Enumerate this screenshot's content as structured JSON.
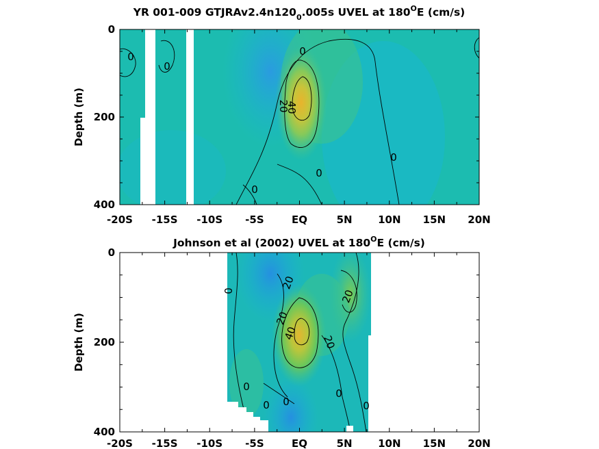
{
  "chart_data": [
    {
      "type": "heatmap",
      "title": "YR 001-009 GTJRAv2.4n120",
      "title_subscript": "0",
      "title_suffix": ".005s UVEL at 180",
      "title_superscript": "O",
      "title_end": "E (cm/s)",
      "xlabel": "",
      "ylabel": "Depth (m)",
      "x_ticks": [
        "-20S",
        "-15S",
        "-10S",
        "-5S",
        "EQ",
        "5N",
        "10N",
        "15N",
        "20N"
      ],
      "y_ticks": [
        "0",
        "200",
        "400"
      ],
      "xlim": [
        -20,
        20
      ],
      "ylim": [
        400,
        0
      ],
      "contour_levels": [
        0,
        20,
        40
      ],
      "undercurrent_core": {
        "lat": 0.5,
        "depth": 150,
        "peak_u": 50
      },
      "contour_labels": [
        "0",
        "0",
        "0",
        "20",
        "40",
        "0",
        "0",
        "0"
      ]
    },
    {
      "type": "heatmap",
      "title": "Johnson et al (2002) UVEL at 180",
      "title_superscript": "O",
      "title_end": "E (cm/s)",
      "xlabel": "",
      "ylabel": "Depth (m)",
      "x_ticks": [
        "-20S",
        "-15S",
        "-10S",
        "-5S",
        "EQ",
        "5N",
        "10N",
        "15N",
        "20N"
      ],
      "y_ticks": [
        "0",
        "200",
        "400"
      ],
      "xlim": [
        -20,
        20
      ],
      "ylim": [
        400,
        0
      ],
      "data_extent_lat": [
        -8,
        8
      ],
      "contour_levels": [
        0,
        20,
        40
      ],
      "undercurrent_core": {
        "lat": 0.5,
        "depth": 160,
        "peak_u": 50
      },
      "contour_labels": [
        "0",
        "20",
        "20",
        "40",
        "20",
        "20",
        "0",
        "0",
        "0",
        "0",
        "0"
      ]
    }
  ],
  "colors": {
    "background": "#ffffff",
    "field_teal": "#1cbcb0",
    "field_cyan": "#19b6d2",
    "field_blue": "#2a9be0",
    "field_green": "#5ec562",
    "field_lightgreen": "#3cc38e",
    "core_yellow": "#e6b830",
    "contour_line": "#000000"
  }
}
